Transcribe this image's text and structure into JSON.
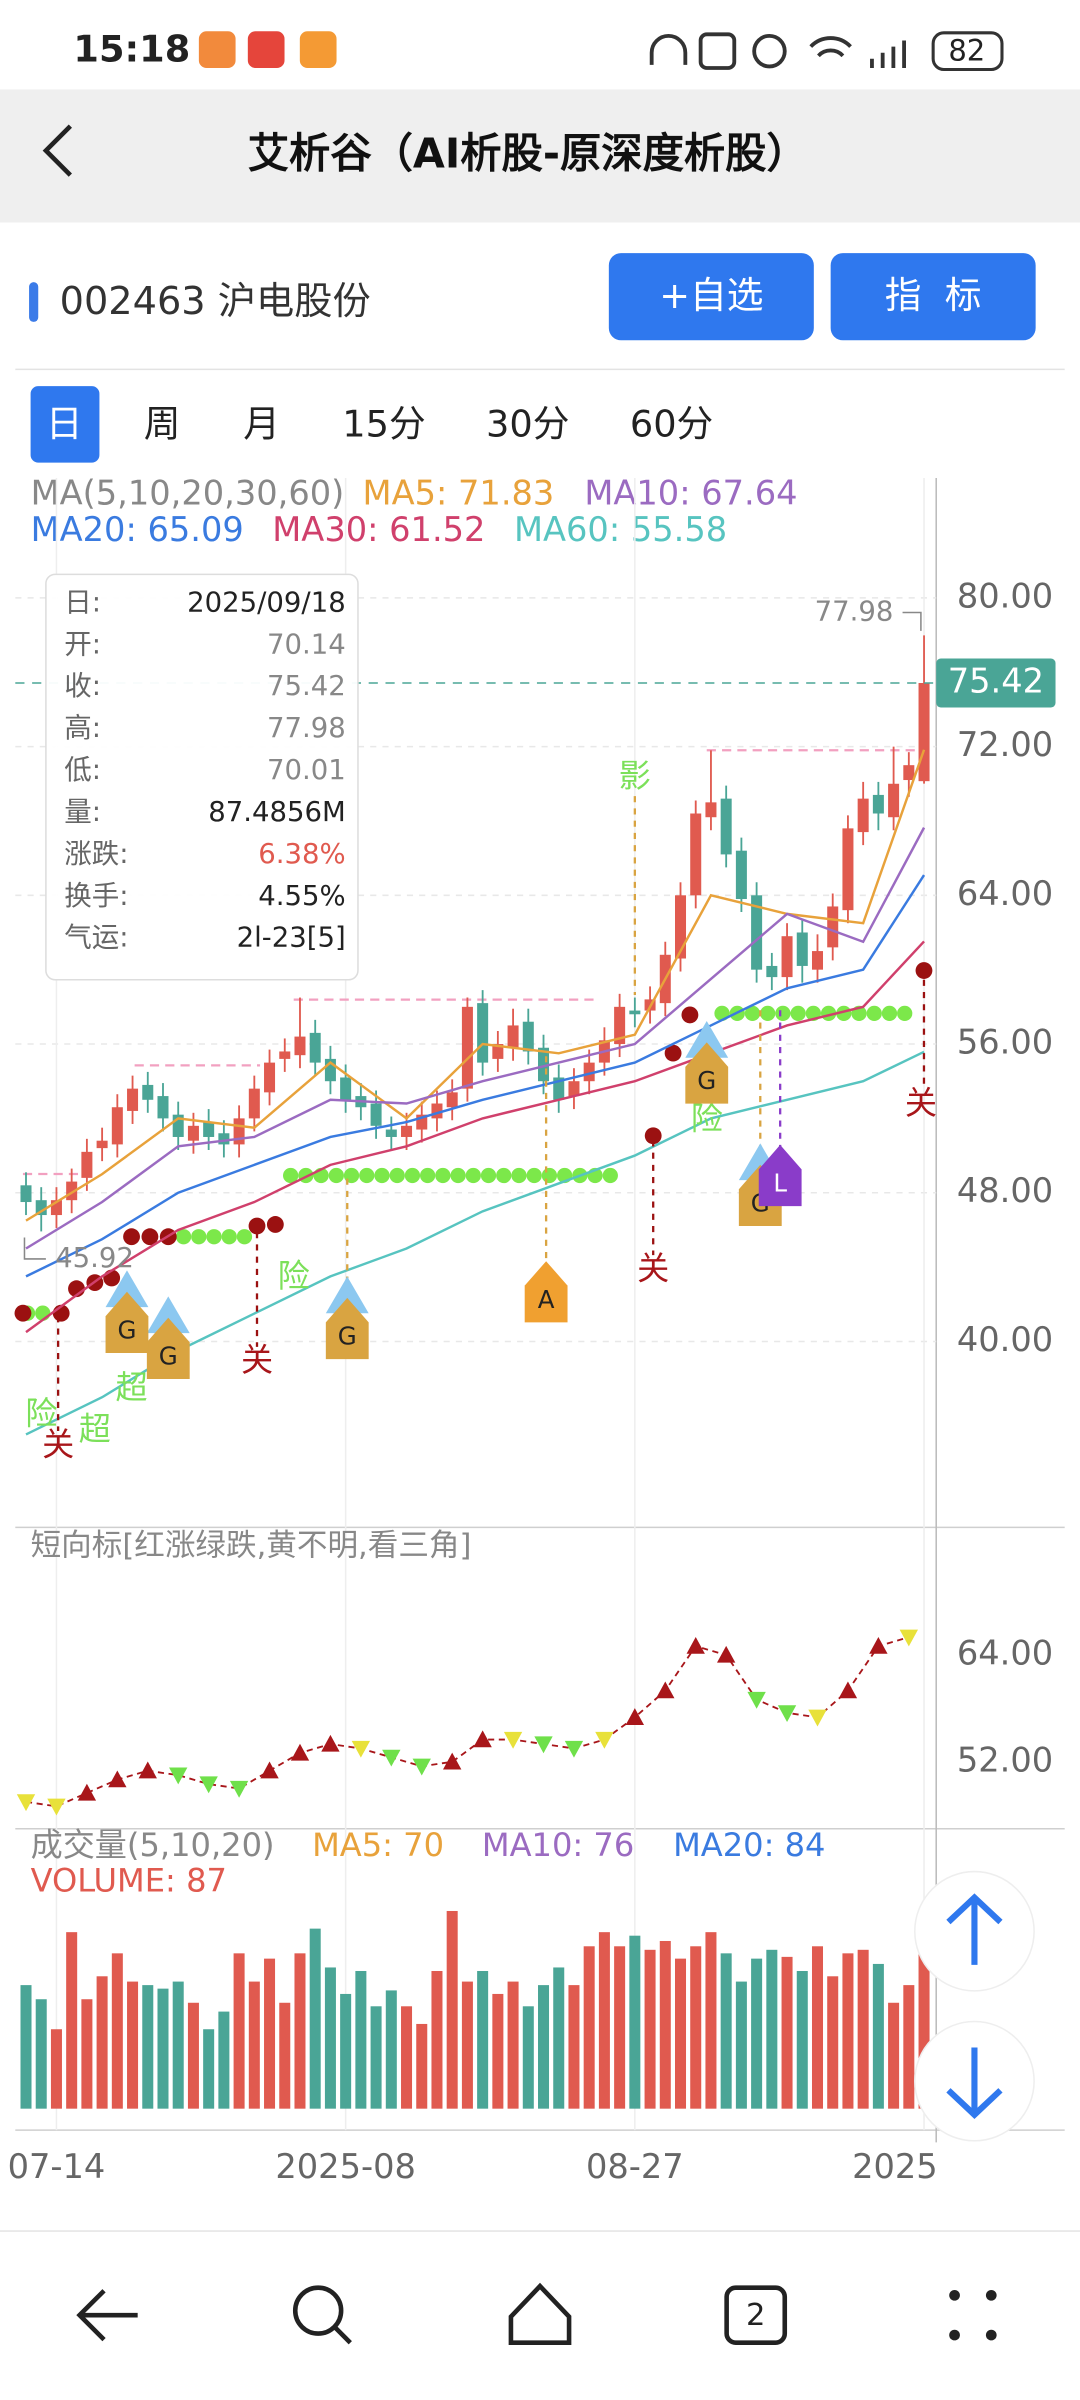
{
  "status_bar": {
    "time": "15:18",
    "battery": "82"
  },
  "header": {
    "title": "艾析谷（AI析股-原深度析股）"
  },
  "stock": {
    "name": "002463 沪电股份",
    "buttons": [
      "+自选",
      "指  标"
    ]
  },
  "tabs": [
    "日",
    "周",
    "月",
    "15分",
    "30分",
    "60分"
  ],
  "tooltip": [
    {
      "label": "日:",
      "value": "2025/09/18"
    },
    {
      "label": "开:",
      "value": "70.14"
    },
    {
      "label": "收:",
      "value": "75.42"
    },
    {
      "label": "高:",
      "value": "77.98"
    },
    {
      "label": "低:",
      "value": "70.01"
    },
    {
      "label": "量:",
      "value": "87.4856M"
    },
    {
      "label": "涨跌:",
      "value": "6.38%",
      "color": "#e05a4f"
    },
    {
      "label": "换手:",
      "value": "4.55%"
    },
    {
      "label": "气运:",
      "value": "2l-23[5]"
    }
  ],
  "markers": [
    "关",
    "关",
    "关",
    "关",
    "险",
    "险",
    "险",
    "超",
    "超",
    "影",
    "G",
    "G",
    "G",
    "G",
    "G",
    "A",
    "L"
  ],
  "nav": {
    "tabs_count": "2"
  },
  "chart_data": {
    "type": "candlestick",
    "legend": [
      {
        "text": "MA(5,10,20,30,60)",
        "color": "#888888"
      },
      {
        "text": "MA5: 71.83",
        "color": "#e8a23b"
      },
      {
        "text": "MA10: 67.64",
        "color": "#9b6bc1"
      },
      {
        "text": "MA20: 65.09",
        "color": "#3a7be0"
      },
      {
        "text": "MA30: 61.52",
        "color": "#d0406c"
      },
      {
        "text": "MA60: 55.58",
        "color": "#57c4c0"
      }
    ],
    "categories": [
      null,
      null,
      "07-14",
      null,
      null,
      null,
      null,
      null,
      null,
      null,
      null,
      null,
      null,
      null,
      null,
      null,
      null,
      null,
      null,
      null,
      null,
      "2025-08",
      null,
      null,
      null,
      null,
      null,
      null,
      null,
      null,
      null,
      null,
      null,
      null,
      null,
      null,
      null,
      null,
      null,
      null,
      "08-27",
      null,
      null,
      null,
      null,
      null,
      null,
      null,
      null,
      null,
      null,
      null,
      null,
      null,
      null,
      null,
      null,
      null,
      null,
      "2025"
    ],
    "open": [
      48.4,
      47.6,
      46.8,
      47.6,
      48.8,
      50.4,
      50.6,
      52.4,
      53.8,
      53.2,
      52.2,
      50.8,
      51.8,
      51.2,
      50.6,
      52,
      53.4,
      55.2,
      55.4,
      56.6,
      55.2,
      54.2,
      53.2,
      52.8,
      51.4,
      51,
      51.4,
      52,
      52.6,
      53.6,
      58.2,
      55.2,
      55.8,
      57.2,
      55.8,
      54.2,
      53.2,
      54,
      55,
      56,
      57.8,
      57.8,
      58.2,
      60.6,
      64,
      68.2,
      69.2,
      66.4,
      64,
      60.2,
      59.6,
      62,
      60,
      61.2,
      63.2,
      67.4,
      69.4,
      68.2,
      70.2,
      70.14
    ],
    "close": [
      47.5,
      46.8,
      47.6,
      48.6,
      50.2,
      50.8,
      52.6,
      53.6,
      53,
      52,
      51,
      51.6,
      51,
      50.6,
      52,
      53.6,
      55,
      55.6,
      56.4,
      55,
      54,
      53,
      52.6,
      51.6,
      51,
      51.6,
      52.2,
      52.8,
      53.4,
      58,
      55,
      56,
      57,
      55.6,
      54,
      53,
      54,
      55,
      56.2,
      58,
      57.6,
      58.4,
      60.8,
      64,
      68.4,
      69,
      66.2,
      63.8,
      60,
      59.6,
      61.8,
      60.2,
      61,
      63.4,
      67.6,
      69.2,
      68.4,
      70,
      71,
      75.42
    ],
    "high": [
      49.1,
      48.3,
      48.3,
      49.3,
      50.9,
      51.5,
      53.3,
      54.3,
      54.5,
      53.9,
      52.9,
      52.3,
      52.5,
      51.9,
      52.7,
      54.3,
      55.7,
      56.3,
      58.5,
      57.3,
      55.9,
      54.9,
      53.9,
      53.5,
      52.1,
      52.3,
      52.9,
      53.5,
      54.1,
      58.5,
      58.9,
      56.7,
      57.9,
      57.9,
      56.5,
      54.9,
      54.7,
      55.7,
      56.9,
      58.7,
      58.5,
      59.1,
      61.5,
      64.7,
      69.1,
      71.8,
      69.9,
      67.1,
      64.7,
      60.9,
      62.5,
      62.7,
      61.9,
      64.1,
      68.3,
      70.1,
      70.1,
      72,
      71.7,
      77.98
    ],
    "low": [
      46.8,
      45.92,
      46.1,
      46.9,
      48.1,
      49.7,
      49.9,
      51.7,
      52.3,
      51.3,
      50.3,
      50.1,
      50.3,
      49.9,
      49.9,
      51.3,
      52.7,
      54.5,
      54.7,
      54.3,
      53.3,
      52.3,
      51.9,
      50.9,
      50.3,
      50.3,
      50.7,
      51.3,
      51.9,
      52.9,
      54.3,
      54.5,
      55.1,
      54.9,
      53.3,
      52.3,
      52.5,
      53.3,
      54.3,
      55.3,
      56.9,
      57.1,
      57.5,
      59.9,
      63.3,
      67.5,
      65.5,
      63.1,
      59.3,
      58.9,
      58.9,
      59.3,
      59.3,
      60.5,
      62.5,
      66.7,
      67.5,
      67.5,
      69.3,
      70.01
    ],
    "ma_index": [
      0,
      5,
      10,
      15,
      20,
      25,
      30,
      35,
      40,
      45,
      50,
      55,
      59
    ],
    "ma_lines": [
      {
        "name": "MA5",
        "color": "#e8a23b",
        "values": [
          46.5,
          49,
          52,
          51.5,
          55,
          52,
          56,
          55.5,
          56.5,
          64,
          63,
          62.5,
          71.83
        ]
      },
      {
        "name": "MA10",
        "color": "#9b6bc1",
        "values": [
          45,
          47.5,
          50.5,
          51,
          53,
          52.8,
          54,
          55,
          56,
          59.5,
          63,
          61.5,
          67.64
        ]
      },
      {
        "name": "MA20",
        "color": "#3a7be0",
        "values": [
          43.5,
          45.5,
          48,
          49.5,
          51,
          51.8,
          53,
          54,
          55,
          57,
          59,
          60,
          65.09
        ]
      },
      {
        "name": "MA30",
        "color": "#d0406c",
        "values": [
          40.5,
          43.5,
          46,
          47.5,
          49.5,
          50.5,
          52,
          53,
          54,
          55.5,
          57,
          58,
          61.52
        ]
      },
      {
        "name": "MA60",
        "color": "#57c4c0",
        "values": [
          35,
          37,
          39.5,
          41.5,
          43.5,
          45,
          47,
          48.5,
          50,
          52,
          53,
          54,
          55.58
        ]
      }
    ],
    "ylim": [
      30,
      82.5
    ],
    "yticks": [
      {
        "value": 80,
        "label": "80.00"
      },
      {
        "value": 72,
        "label": "72.00"
      },
      {
        "value": 64,
        "label": "64.00"
      },
      {
        "value": 56,
        "label": "56.00"
      },
      {
        "value": 48,
        "label": "48.00"
      },
      {
        "value": 40,
        "label": "40.00"
      }
    ],
    "high_label": "77.98",
    "low_label": "45.92",
    "last_price": {
      "value": 75.42,
      "label": "75.42"
    },
    "short_panel": {
      "title": "短向标[红涨绿跌,黄不明,看三角]",
      "index": [
        0,
        2,
        4,
        6,
        8,
        10,
        12,
        14,
        16,
        18,
        20,
        22,
        24,
        26,
        28,
        30,
        32,
        34,
        36,
        38,
        40,
        42,
        44,
        46,
        48,
        50,
        52,
        54,
        56,
        58
      ],
      "values": [
        47.5,
        47,
        48.5,
        50,
        51,
        50.5,
        49.5,
        49,
        51,
        53,
        54,
        53.5,
        52.5,
        51.5,
        52,
        54.5,
        54.5,
        54,
        53.5,
        54.5,
        57,
        60,
        65,
        64,
        59,
        57.5,
        57,
        60,
        65,
        66
      ],
      "colors": [
        "#e8e13a",
        "#e8e13a",
        "#a8161a",
        "#a8161a",
        "#a8161a",
        "#6fe04a",
        "#6fe04a",
        "#6fe04a",
        "#a8161a",
        "#a8161a",
        "#a8161a",
        "#e8e13a",
        "#6fe04a",
        "#6fe04a",
        "#a8161a",
        "#a8161a",
        "#e8e13a",
        "#6fe04a",
        "#6fe04a",
        "#e8e13a",
        "#a8161a",
        "#a8161a",
        "#a8161a",
        "#a8161a",
        "#6fe04a",
        "#6fe04a",
        "#e8e13a",
        "#a8161a",
        "#a8161a",
        "#e8e13a"
      ],
      "ylim": [
        45,
        78
      ],
      "yticks": [
        {
          "value": 64,
          "label": "64.00"
        },
        {
          "value": 52,
          "label": "52.00"
        }
      ]
    },
    "volume_panel": {
      "legend": [
        {
          "text": "成交量(5,10,20)",
          "color": "#888888"
        },
        {
          "text": "MA5: 70",
          "color": "#e8a23b"
        },
        {
          "text": "MA10: 76",
          "color": "#9b6bc1"
        },
        {
          "text": "MA20: 84",
          "color": "#3a7be0"
        },
        {
          "text": "VOLUME: 87",
          "color": "#e05a4f"
        }
      ],
      "values": [
        70,
        62,
        45,
        100,
        62,
        75,
        88,
        72,
        70,
        68,
        72,
        60,
        45,
        55,
        88,
        72,
        85,
        60,
        88,
        102,
        80,
        65,
        78,
        58,
        67,
        58,
        48,
        78,
        112,
        72,
        78,
        65,
        72,
        58,
        70,
        80,
        70,
        92,
        100,
        92,
        98,
        90,
        95,
        85,
        92,
        100,
        88,
        72,
        85,
        90,
        86,
        78,
        92,
        75,
        88,
        90,
        82,
        60,
        70,
        87.4856
      ],
      "ylim": [
        0,
        130
      ]
    },
    "up_color": "#e05a4f",
    "down_color": "#4aa596"
  }
}
